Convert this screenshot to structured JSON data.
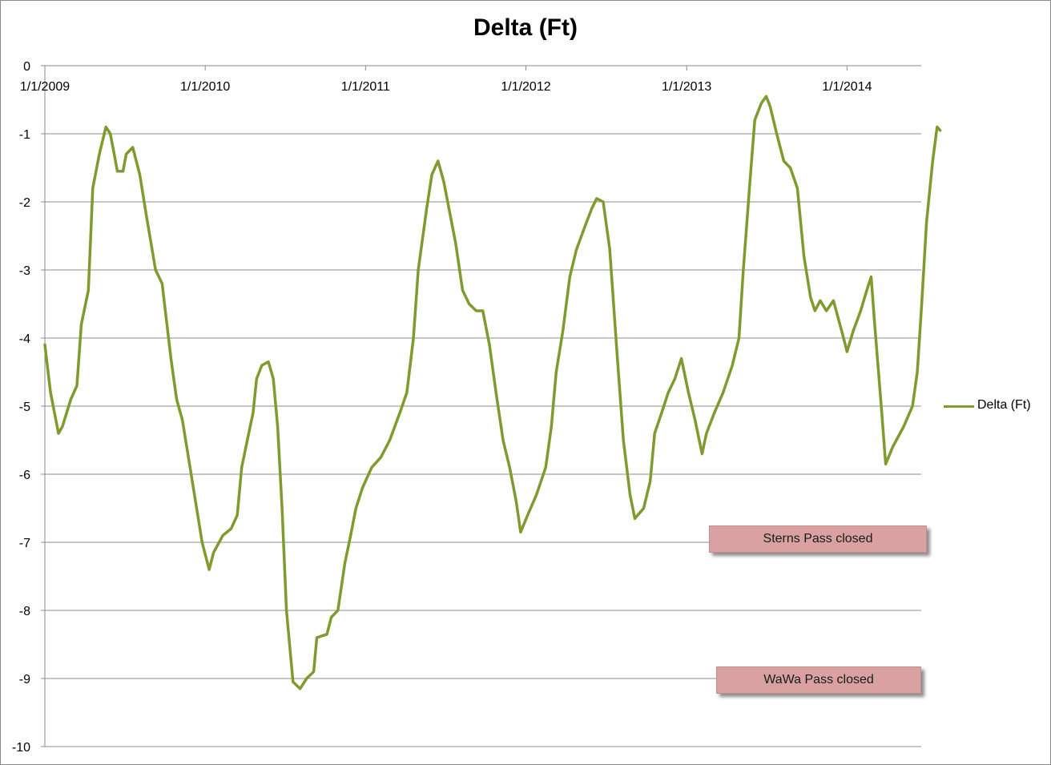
{
  "chart_data": {
    "type": "line",
    "title": "Delta (Ft)",
    "xlabel": "",
    "ylabel": "",
    "ylim": [
      -10,
      0
    ],
    "yticks": [
      0,
      -1,
      -2,
      -3,
      -4,
      -5,
      -6,
      -7,
      -8,
      -9,
      -10
    ],
    "xlim": [
      "2009-01-01",
      "2014-06-15"
    ],
    "xticks": [
      "1/1/2009",
      "1/1/2010",
      "1/1/2011",
      "1/1/2012",
      "1/1/2013",
      "1/1/2014"
    ],
    "grid": true,
    "legend_position": "right",
    "series": [
      {
        "name": "Delta (Ft)",
        "color": "#7f9a2e",
        "points": [
          [
            "2009-01-01",
            -4.1
          ],
          [
            "2009-01-14",
            -4.8
          ],
          [
            "2009-02-01",
            -5.4
          ],
          [
            "2009-02-10",
            -5.3
          ],
          [
            "2009-03-01",
            -4.9
          ],
          [
            "2009-03-15",
            -4.7
          ],
          [
            "2009-03-25",
            -3.8
          ],
          [
            "2009-04-10",
            -3.3
          ],
          [
            "2009-04-20",
            -1.8
          ],
          [
            "2009-05-05",
            -1.3
          ],
          [
            "2009-05-20",
            -0.9
          ],
          [
            "2009-05-30",
            -1.0
          ],
          [
            "2009-06-08",
            -1.3
          ],
          [
            "2009-06-15",
            -1.55
          ],
          [
            "2009-06-28",
            -1.55
          ],
          [
            "2009-07-05",
            -1.3
          ],
          [
            "2009-07-20",
            -1.2
          ],
          [
            "2009-08-05",
            -1.6
          ],
          [
            "2009-08-20",
            -2.2
          ],
          [
            "2009-09-10",
            -3.0
          ],
          [
            "2009-09-25",
            -3.2
          ],
          [
            "2009-10-15",
            -4.3
          ],
          [
            "2009-10-28",
            -4.9
          ],
          [
            "2009-11-10",
            -5.2
          ],
          [
            "2009-11-25",
            -5.8
          ],
          [
            "2009-12-10",
            -6.4
          ],
          [
            "2009-12-25",
            -7.0
          ],
          [
            "2010-01-10",
            -7.4
          ],
          [
            "2010-01-20",
            -7.15
          ],
          [
            "2010-02-10",
            -6.9
          ],
          [
            "2010-03-01",
            -6.8
          ],
          [
            "2010-03-15",
            -6.6
          ],
          [
            "2010-03-25",
            -5.9
          ],
          [
            "2010-04-10",
            -5.4
          ],
          [
            "2010-04-20",
            -5.1
          ],
          [
            "2010-04-28",
            -4.6
          ],
          [
            "2010-05-10",
            -4.4
          ],
          [
            "2010-05-25",
            -4.35
          ],
          [
            "2010-06-05",
            -4.6
          ],
          [
            "2010-06-15",
            -5.3
          ],
          [
            "2010-06-25",
            -6.5
          ],
          [
            "2010-07-05",
            -8.0
          ],
          [
            "2010-07-20",
            -9.05
          ],
          [
            "2010-08-05",
            -9.15
          ],
          [
            "2010-08-20",
            -9.0
          ],
          [
            "2010-09-05",
            -8.9
          ],
          [
            "2010-09-12",
            -8.4
          ],
          [
            "2010-10-05",
            -8.35
          ],
          [
            "2010-10-15",
            -8.1
          ],
          [
            "2010-10-30",
            -8.0
          ],
          [
            "2010-11-15",
            -7.3
          ],
          [
            "2010-11-28",
            -6.9
          ],
          [
            "2010-12-10",
            -6.5
          ],
          [
            "2010-12-25",
            -6.2
          ],
          [
            "2011-01-15",
            -5.9
          ],
          [
            "2011-02-05",
            -5.75
          ],
          [
            "2011-02-25",
            -5.5
          ],
          [
            "2011-03-20",
            -5.1
          ],
          [
            "2011-04-05",
            -4.8
          ],
          [
            "2011-04-20",
            -4.0
          ],
          [
            "2011-05-01",
            -3.0
          ],
          [
            "2011-05-20",
            -2.1
          ],
          [
            "2011-06-01",
            -1.6
          ],
          [
            "2011-06-15",
            -1.4
          ],
          [
            "2011-06-28",
            -1.7
          ],
          [
            "2011-07-10",
            -2.1
          ],
          [
            "2011-07-25",
            -2.6
          ],
          [
            "2011-08-10",
            -3.3
          ],
          [
            "2011-08-25",
            -3.5
          ],
          [
            "2011-09-10",
            -3.6
          ],
          [
            "2011-09-25",
            -3.6
          ],
          [
            "2011-10-10",
            -4.1
          ],
          [
            "2011-10-25",
            -4.8
          ],
          [
            "2011-11-10",
            -5.5
          ],
          [
            "2011-11-25",
            -5.9
          ],
          [
            "2011-12-10",
            -6.4
          ],
          [
            "2011-12-20",
            -6.85
          ],
          [
            "2012-01-05",
            -6.6
          ],
          [
            "2012-01-25",
            -6.3
          ],
          [
            "2012-02-15",
            -5.9
          ],
          [
            "2012-02-28",
            -5.3
          ],
          [
            "2012-03-10",
            -4.5
          ],
          [
            "2012-03-25",
            -3.9
          ],
          [
            "2012-04-10",
            -3.1
          ],
          [
            "2012-04-25",
            -2.7
          ],
          [
            "2012-05-15",
            -2.35
          ],
          [
            "2012-05-30",
            -2.1
          ],
          [
            "2012-06-10",
            -1.95
          ],
          [
            "2012-06-25",
            -2.0
          ],
          [
            "2012-07-10",
            -2.7
          ],
          [
            "2012-07-25",
            -4.1
          ],
          [
            "2012-08-10",
            -5.5
          ],
          [
            "2012-08-25",
            -6.3
          ],
          [
            "2012-09-05",
            -6.65
          ],
          [
            "2012-09-25",
            -6.5
          ],
          [
            "2012-10-10",
            -6.1
          ],
          [
            "2012-10-20",
            -5.4
          ],
          [
            "2012-11-05",
            -5.1
          ],
          [
            "2012-11-20",
            -4.8
          ],
          [
            "2012-12-05",
            -4.6
          ],
          [
            "2012-12-20",
            -4.3
          ],
          [
            "2013-01-05",
            -4.8
          ],
          [
            "2013-01-20",
            -5.2
          ],
          [
            "2013-02-05",
            -5.7
          ],
          [
            "2013-02-15",
            -5.4
          ],
          [
            "2013-03-05",
            -5.1
          ],
          [
            "2013-03-25",
            -4.8
          ],
          [
            "2013-04-15",
            -4.4
          ],
          [
            "2013-04-30",
            -4.0
          ],
          [
            "2013-05-10",
            -3.0
          ],
          [
            "2013-05-25",
            -1.7
          ],
          [
            "2013-06-05",
            -0.8
          ],
          [
            "2013-06-20",
            -0.55
          ],
          [
            "2013-07-01",
            -0.45
          ],
          [
            "2013-07-10",
            -0.6
          ],
          [
            "2013-07-25",
            -1.0
          ],
          [
            "2013-08-10",
            -1.4
          ],
          [
            "2013-08-25",
            -1.5
          ],
          [
            "2013-09-10",
            -1.8
          ],
          [
            "2013-09-25",
            -2.8
          ],
          [
            "2013-10-10",
            -3.4
          ],
          [
            "2013-10-20",
            -3.6
          ],
          [
            "2013-11-01",
            -3.45
          ],
          [
            "2013-11-15",
            -3.6
          ],
          [
            "2013-12-01",
            -3.45
          ],
          [
            "2013-12-20",
            -3.9
          ],
          [
            "2014-01-01",
            -4.2
          ],
          [
            "2014-01-15",
            -3.9
          ],
          [
            "2014-02-01",
            -3.6
          ],
          [
            "2014-02-15",
            -3.3
          ],
          [
            "2014-02-25",
            -3.1
          ],
          [
            "2014-03-05",
            -3.8
          ],
          [
            "2014-03-20",
            -5.0
          ],
          [
            "2014-03-30",
            -5.85
          ],
          [
            "2014-04-15",
            -5.6
          ],
          [
            "2014-05-10",
            -5.3
          ],
          [
            "2014-05-30",
            -5.0
          ],
          [
            "2014-06-10",
            -4.5
          ],
          [
            "2014-06-20",
            -3.5
          ],
          [
            "2014-07-01",
            -2.3
          ],
          [
            "2014-07-15",
            -1.4
          ],
          [
            "2014-07-25",
            -0.9
          ],
          [
            "2014-08-01",
            -0.95
          ]
        ]
      }
    ],
    "annotations": [
      {
        "text": "Sterns Pass closed",
        "fill": "#d9a1a1"
      },
      {
        "text": "WaWa Pass closed",
        "fill": "#d9a1a1"
      }
    ]
  }
}
